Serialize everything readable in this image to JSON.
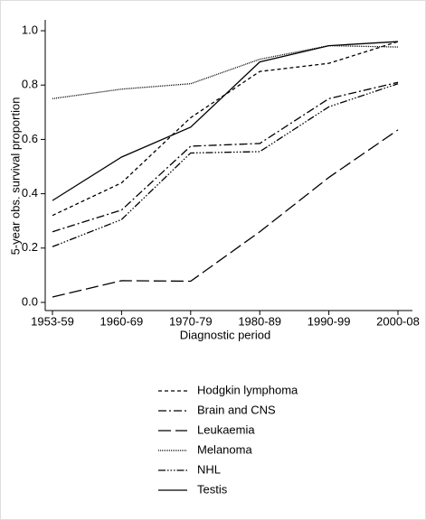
{
  "chart_data": {
    "type": "line",
    "y_label": "5-year obs. survival proportion",
    "x_label": "Diagnostic period",
    "categories": [
      "1953-59",
      "1960-69",
      "1970-79",
      "1980-89",
      "1990-99",
      "2000-08"
    ],
    "ylim": [
      -0.03,
      1.04
    ],
    "yticks": [
      {
        "value": 0,
        "label": "0.0"
      },
      0.2,
      0.4,
      0.6,
      0.8,
      {
        "value": 1,
        "label": "1.0"
      }
    ],
    "series": [
      {
        "name": "Hodgkin lymphoma",
        "color": "#000000",
        "dash": "4,3",
        "values": [
          0.32,
          0.44,
          0.68,
          0.85,
          0.88,
          0.96
        ]
      },
      {
        "name": "Brain and CNS",
        "color": "#000000",
        "dash": "9,3,2,3",
        "values": [
          0.26,
          0.34,
          0.575,
          0.585,
          0.75,
          0.81
        ]
      },
      {
        "name": "Leukaemia",
        "color": "#000000",
        "dash": "14,5",
        "values": [
          0.02,
          0.08,
          0.078,
          0.26,
          0.46,
          0.635
        ]
      },
      {
        "name": "Melanoma",
        "color": "#000000",
        "dash": "1,1",
        "values": [
          0.75,
          0.785,
          0.805,
          0.895,
          0.945,
          0.94
        ]
      },
      {
        "name": "NHL",
        "color": "#000000",
        "dash": "8,2,1.5,2,1.5,2,1.5,2",
        "values": [
          0.205,
          0.305,
          0.55,
          0.555,
          0.72,
          0.805
        ]
      },
      {
        "name": "Testis",
        "color": "#000000",
        "dash": "none",
        "values": [
          0.375,
          0.535,
          0.645,
          0.885,
          0.945,
          0.96
        ]
      }
    ]
  }
}
